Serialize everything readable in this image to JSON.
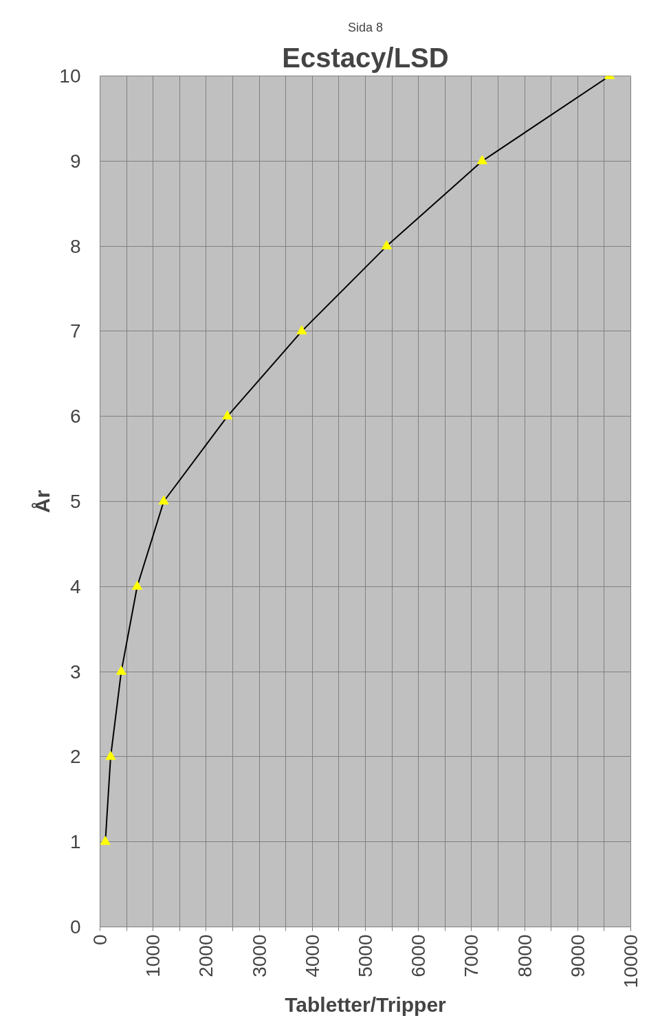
{
  "chart_data": {
    "type": "line",
    "title": "Ecstacy/LSD",
    "xlabel": "Tabletter/Tripper",
    "ylabel": "År",
    "annotations": [
      "Sida 8"
    ],
    "x": [
      100,
      200,
      400,
      700,
      1200,
      2400,
      3800,
      5400,
      7200,
      9600
    ],
    "series": [
      {
        "color": "#000000",
        "values": [
          1,
          2,
          3,
          4,
          5,
          6,
          7,
          8,
          9,
          10
        ],
        "colors": [
          "#ffff00",
          "#ffff00",
          "#ffff00",
          "#ffff00",
          "#ffff00",
          "#ffff00",
          "#ffff00",
          "#ffff00",
          "#ffff00",
          "#ffff00"
        ]
      }
    ],
    "xlim": [
      0,
      10000
    ],
    "ylim": [
      0,
      10
    ],
    "xticks": [
      0,
      {
        "value": 500,
        "label": null
      },
      1000,
      {
        "value": 1500,
        "label": null
      },
      2000,
      {
        "value": 2500,
        "label": null
      },
      3000,
      {
        "value": 3500,
        "label": null
      },
      4000,
      {
        "value": 4500,
        "label": null
      },
      5000,
      {
        "value": 5500,
        "label": null
      },
      6000,
      {
        "value": 6500,
        "label": null
      },
      7000,
      {
        "value": 7500,
        "label": null
      },
      8000,
      {
        "value": 8500,
        "label": null
      },
      9000,
      {
        "value": 9500,
        "label": null
      },
      10000
    ],
    "yticks": [
      0,
      1,
      2,
      3,
      4,
      5,
      6,
      7,
      8,
      9,
      10
    ],
    "grid": true,
    "marker": "triangle",
    "line_style": "solid"
  }
}
